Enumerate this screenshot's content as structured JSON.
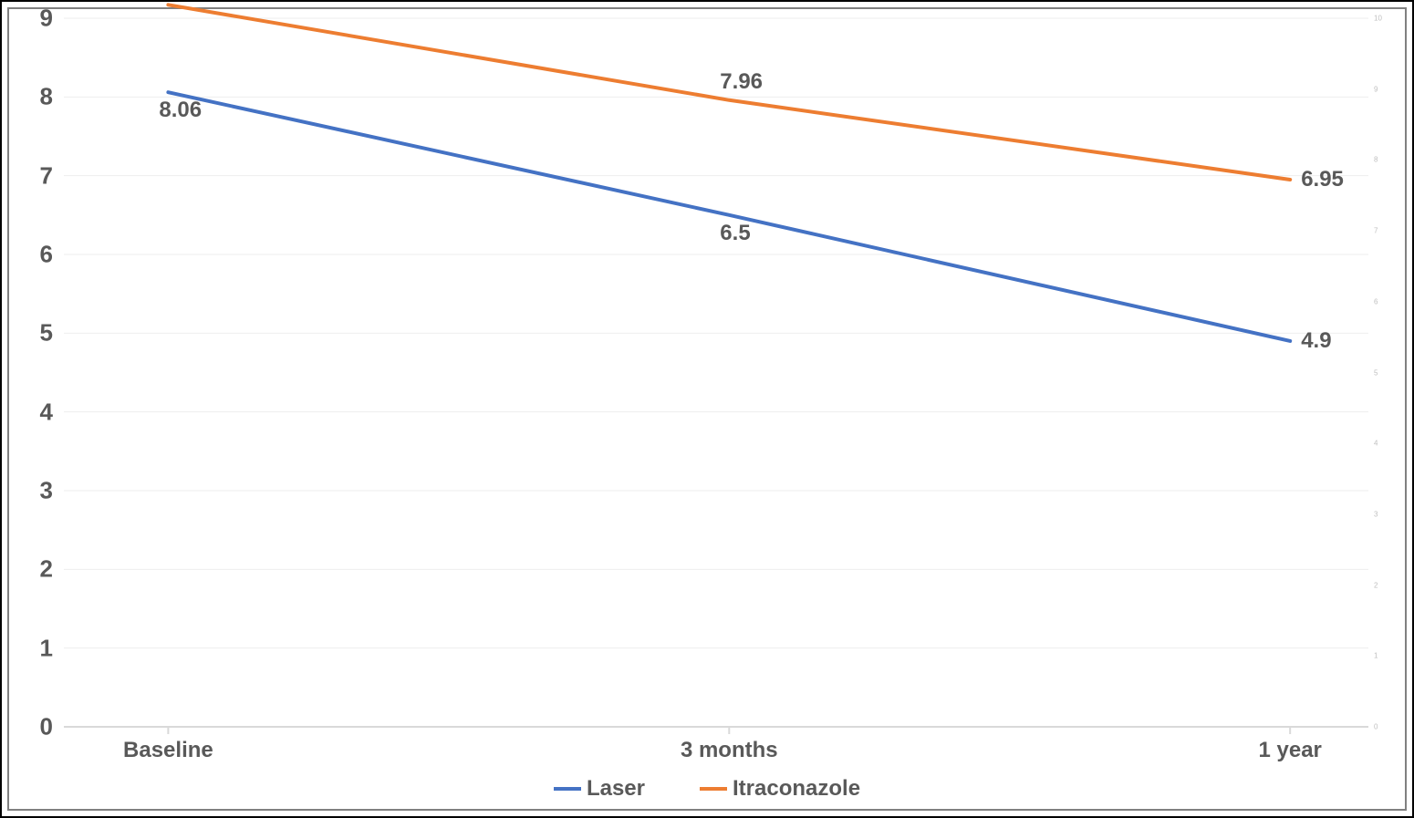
{
  "chart": {
    "type": "line",
    "background_color": "#ffffff",
    "outer_border_color": "#000000",
    "inner_border_color": "#808080",
    "grid_color": "#eeeeee",
    "axis_line_color": "#d9d9d9",
    "label_color": "#595959",
    "label_fontsize": 24,
    "tick_fontsize": 26,
    "data_label_fontsize": 24,
    "line_width": 4,
    "ylim": [
      0,
      9
    ],
    "ytick_step": 1,
    "yticks": [
      0,
      1,
      2,
      3,
      4,
      5,
      6,
      7,
      8,
      9
    ],
    "secondary_ticks": [
      0,
      1,
      2,
      3,
      4,
      5,
      6,
      7,
      8,
      9,
      10
    ],
    "categories": [
      "Baseline",
      "3 months",
      "1 year"
    ],
    "series": [
      {
        "name": "Laser",
        "color": "#4472c4",
        "values": [
          8.06,
          6.5,
          4.9
        ],
        "label_positions": [
          "below",
          "below",
          "right"
        ]
      },
      {
        "name": "Itraconazole",
        "color": "#ed7d31",
        "values": [
          9.17,
          7.96,
          6.95
        ],
        "label_positions": [
          "above",
          "above",
          "right"
        ]
      }
    ],
    "legend": {
      "items": [
        {
          "label": "Laser",
          "color": "#4472c4"
        },
        {
          "label": "Itraconazole",
          "color": "#ed7d31"
        }
      ]
    }
  }
}
